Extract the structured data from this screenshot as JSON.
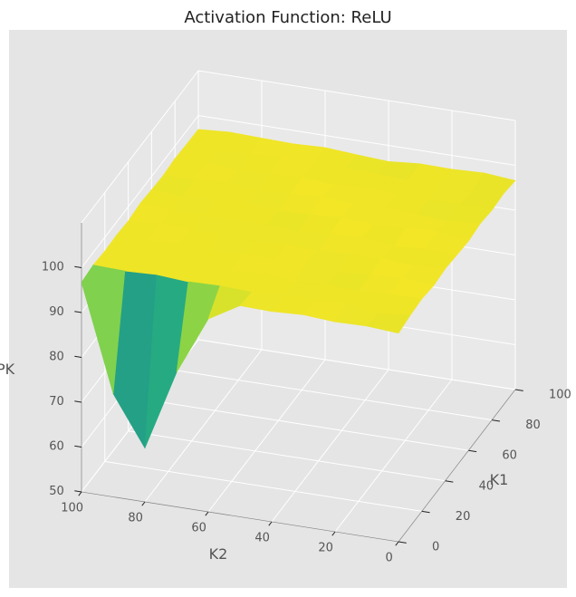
{
  "chart_data": {
    "type": "surface3d",
    "title": "Activation Function: ReLU",
    "xlabel": "K1",
    "ylabel": "K2",
    "zlabel": "PK",
    "x": [
      0,
      10,
      20,
      30,
      40,
      50,
      60,
      70,
      80,
      90,
      100
    ],
    "y": [
      0,
      10,
      20,
      30,
      40,
      50,
      60,
      70,
      80,
      90,
      100
    ],
    "x_ticks": [
      0,
      20,
      40,
      60,
      80,
      100
    ],
    "y_ticks": [
      0,
      20,
      40,
      60,
      80,
      100
    ],
    "z_ticks": [
      50,
      60,
      70,
      80,
      90,
      100
    ],
    "zlim": [
      50,
      100
    ],
    "z": [
      [
        96.5,
        97.1,
        97.4,
        96.9,
        97.3,
        97.0,
        96.7,
        97.2,
        96.8,
        97.1,
        96.6
      ],
      [
        97.0,
        96.4,
        97.3,
        97.5,
        96.9,
        97.2,
        97.8,
        96.5,
        97.0,
        96.3,
        97.2
      ],
      [
        96.8,
        97.6,
        96.7,
        97.1,
        97.4,
        96.6,
        97.3,
        97.0,
        96.8,
        97.5,
        96.9
      ],
      [
        97.3,
        96.9,
        97.2,
        96.5,
        97.0,
        97.7,
        96.8,
        97.4,
        97.1,
        96.7,
        97.0
      ],
      [
        96.9,
        97.2,
        96.6,
        97.4,
        96.8,
        97.1,
        97.5,
        96.9,
        97.3,
        97.0,
        96.4
      ],
      [
        97.1,
        96.7,
        97.5,
        97.0,
        97.3,
        96.5,
        97.0,
        97.6,
        96.9,
        97.2,
        96.8
      ],
      [
        93.0,
        97.0,
        96.9,
        97.3,
        96.6,
        97.2,
        96.8,
        97.1,
        97.4,
        96.9,
        97.3
      ],
      [
        80.0,
        96.8,
        97.4,
        96.7,
        97.1,
        97.0,
        97.3,
        96.6,
        97.0,
        97.5,
        97.0
      ],
      [
        62.0,
        97.3,
        96.8,
        97.2,
        97.0,
        96.7,
        97.1,
        97.4,
        96.8,
        97.0,
        97.2
      ],
      [
        73.0,
        97.0,
        97.1,
        96.9,
        97.4,
        97.2,
        96.6,
        97.0,
        97.3,
        96.8,
        97.4
      ],
      [
        96.7,
        97.2,
        96.9,
        97.1,
        96.8,
        97.3,
        97.0,
        96.8,
        97.2,
        97.0,
        96.9
      ]
    ],
    "colormap": "viridis",
    "background": "#e5e5e5",
    "grid": true
  }
}
